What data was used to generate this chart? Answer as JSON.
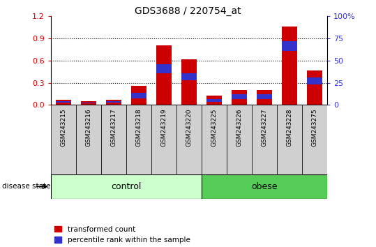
{
  "title": "GDS3688 / 220754_at",
  "categories": [
    "GSM243215",
    "GSM243216",
    "GSM243217",
    "GSM243218",
    "GSM243219",
    "GSM243220",
    "GSM243225",
    "GSM243226",
    "GSM243227",
    "GSM243228",
    "GSM243275"
  ],
  "red_values": [
    0.07,
    0.05,
    0.07,
    0.26,
    0.8,
    0.62,
    0.13,
    0.2,
    0.2,
    1.06,
    0.47
  ],
  "blue_values": [
    0.02,
    0.01,
    0.02,
    0.07,
    0.12,
    0.1,
    0.04,
    0.07,
    0.07,
    0.13,
    0.09
  ],
  "blue_bottoms": [
    0.03,
    0.02,
    0.03,
    0.09,
    0.43,
    0.33,
    0.04,
    0.08,
    0.08,
    0.73,
    0.28
  ],
  "control_label": "control",
  "obese_label": "obese",
  "disease_state_label": "disease state",
  "legend_red": "transformed count",
  "legend_blue": "percentile rank within the sample",
  "ylim_left": [
    0,
    1.2
  ],
  "ylim_right": [
    0,
    100
  ],
  "yticks_left": [
    0,
    0.3,
    0.6,
    0.9,
    1.2
  ],
  "yticks_right": [
    0,
    25,
    50,
    75,
    100
  ],
  "bar_color_red": "#cc0000",
  "bar_color_blue": "#3333cc",
  "bar_width": 0.6,
  "tick_color_left": "#cc0000",
  "tick_color_right": "#3333cc",
  "xticklabel_bg": "#d0d0d0",
  "control_bg_light": "#ccffcc",
  "control_bg_dark": "#55cc55",
  "n_control": 6,
  "n_obese": 5
}
